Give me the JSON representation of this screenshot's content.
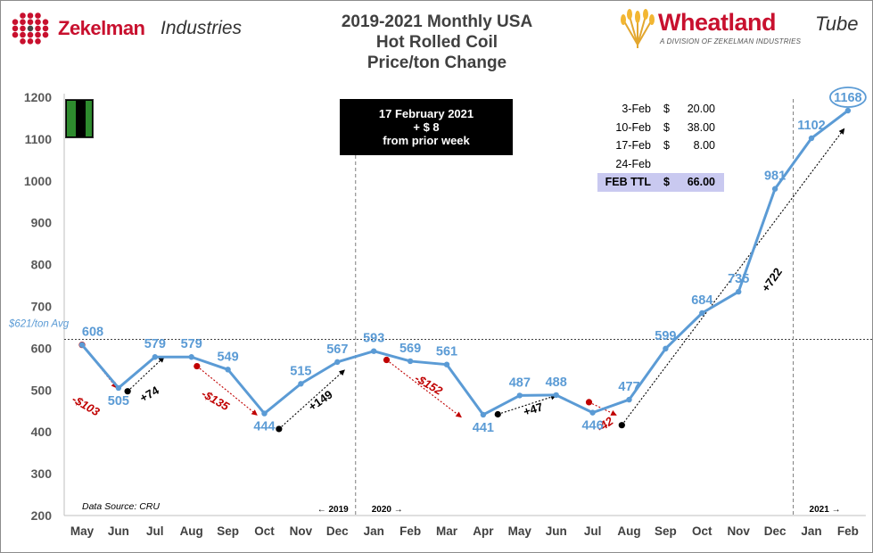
{
  "title_lines": [
    "2019-2021 Monthly USA",
    "Hot Rolled Coil",
    "Price/ton Change"
  ],
  "logo_left": {
    "bold": "Zekelman",
    "italic": "Industries"
  },
  "logo_right": {
    "bold": "Wheatland",
    "italic": "Tube",
    "tagline": "A DIVISION OF ZEKELMAN INDUSTRIES"
  },
  "notice": {
    "line1": "17 February 2021",
    "line2": "+ $  8",
    "line3": "from prior week"
  },
  "weekly_table": {
    "rows": [
      {
        "date": "3-Feb",
        "currency": "$",
        "amount": "20.00"
      },
      {
        "date": "10-Feb",
        "currency": "$",
        "amount": "38.00"
      },
      {
        "date": "17-Feb",
        "currency": "$",
        "amount": "8.00"
      },
      {
        "date": "24-Feb",
        "currency": "",
        "amount": ""
      }
    ],
    "total": {
      "label": "FEB TTL",
      "currency": "$",
      "amount": "66.00"
    }
  },
  "chart_data": {
    "type": "line",
    "categories": [
      "May",
      "Jun",
      "Jul",
      "Aug",
      "Sep",
      "Oct",
      "Nov",
      "Dec",
      "Jan",
      "Feb",
      "Mar",
      "Apr",
      "May",
      "Jun",
      "Jul",
      "Aug",
      "Sep",
      "Oct",
      "Nov",
      "Dec",
      "Jan",
      "Feb"
    ],
    "values": [
      608,
      505,
      579,
      579,
      549,
      444,
      515,
      567,
      593,
      569,
      561,
      441,
      487,
      488,
      446,
      477,
      599,
      684,
      735,
      981,
      1102,
      1168
    ],
    "value_labels": [
      "608",
      "505",
      "579",
      "579",
      "549",
      "444",
      "515",
      "567",
      "593",
      "569",
      "561",
      "441",
      "487",
      "488",
      "446",
      "477",
      "599",
      "684",
      "735",
      "981",
      "1102",
      "1168"
    ],
    "highlight_index": 21,
    "ylim": [
      200,
      1200
    ],
    "yticks": [
      200,
      300,
      400,
      500,
      600,
      700,
      800,
      900,
      1000,
      1100,
      1200
    ],
    "ytick_labels": [
      "200",
      "300",
      "400",
      "500",
      "600",
      "700",
      "800",
      "900",
      "1000",
      "1100",
      "1200"
    ],
    "grid": false,
    "line_color": "#5b9bd5",
    "average": {
      "value": 621,
      "label": "$621/ton Avg",
      "color": "#5b9bd5"
    },
    "year_dividers": [
      {
        "after_index": 7,
        "left_label": "← 2019",
        "right_label": "2020 →"
      },
      {
        "after_index": 19,
        "right_label": "2021 →"
      }
    ],
    "source": "Data Source: CRU",
    "change_annotations": [
      {
        "label": "-$103",
        "from": [
          0,
          608
        ],
        "to": [
          0.95,
          505
        ],
        "color": "#c00000",
        "label_at": [
          0.05,
          455
        ],
        "angle": 30
      },
      {
        "label": "+74",
        "from": [
          1.25,
          497
        ],
        "to": [
          2.25,
          579
        ],
        "color": "#000000",
        "label_at": [
          1.9,
          482
        ],
        "angle": -30
      },
      {
        "label": "-$135",
        "from": [
          3.15,
          557
        ],
        "to": [
          4.8,
          440
        ],
        "color": "#c00000",
        "label_at": [
          3.6,
          468
        ],
        "angle": 30
      },
      {
        "label": "+149",
        "from": [
          5.4,
          407
        ],
        "to": [
          7.2,
          548
        ],
        "color": "#000000",
        "label_at": [
          6.6,
          467
        ],
        "angle": -35
      },
      {
        "label": "-$152",
        "from": [
          8.35,
          572
        ],
        "to": [
          10.4,
          435
        ],
        "color": "#c00000",
        "label_at": [
          9.45,
          505
        ],
        "angle": 30
      },
      {
        "label": "+47",
        "from": [
          11.4,
          442
        ],
        "to": [
          13.0,
          487
        ],
        "color": "#000000",
        "label_at": [
          12.4,
          445
        ],
        "angle": -17
      },
      {
        "label": "-42",
        "from": [
          13.9,
          471
        ],
        "to": [
          14.65,
          440
        ],
        "color": "#c00000",
        "label_at": [
          14.4,
          410
        ],
        "angle": -35
      },
      {
        "label": "+722",
        "from": [
          14.8,
          416
        ],
        "to": [
          20.9,
          1125
        ],
        "color": "#000000",
        "label_at": [
          19.0,
          758
        ],
        "angle": -55
      }
    ]
  },
  "colors": {
    "brand_red": "#c8102e",
    "series_blue": "#5b9bd5",
    "decline_red": "#c00000",
    "total_highlight": "#c9c9f0"
  }
}
